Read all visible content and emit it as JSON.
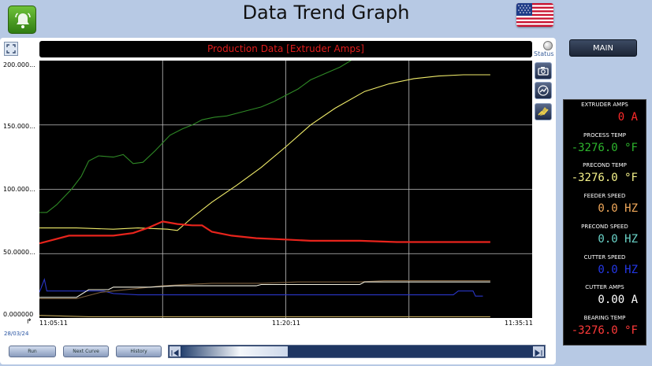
{
  "header": {
    "title": "Data Trend Graph",
    "alarm_icon": "bell-icon",
    "flag_icon": "us-flag-icon"
  },
  "chart_panel": {
    "title": "Production Data [Extruder Amps]",
    "status_label": "Status",
    "date": "28/03/24",
    "tools": [
      "camera-icon",
      "trend-icon",
      "edit-chart-icon"
    ]
  },
  "chart_data": {
    "type": "line",
    "title": "Production Data [Extruder Amps]",
    "xlabel": "",
    "ylabel": "",
    "x_ticks": [
      "11:05:11",
      "11:20:11",
      "11:35:11"
    ],
    "y_ticks": [
      "200.000...",
      "150.000...",
      "100.000...",
      "50.0000...",
      "0.000000"
    ],
    "ylim": [
      0,
      200
    ],
    "grid": true,
    "series": [
      {
        "color": "#2f8a26",
        "points": [
          [
            0,
            82
          ],
          [
            0.03,
            82
          ],
          [
            0.07,
            88
          ],
          [
            0.13,
            100
          ],
          [
            0.17,
            110
          ],
          [
            0.2,
            122
          ],
          [
            0.24,
            126
          ],
          [
            0.3,
            125
          ],
          [
            0.34,
            127
          ],
          [
            0.38,
            120
          ],
          [
            0.42,
            121
          ],
          [
            0.47,
            130
          ],
          [
            0.53,
            142
          ],
          [
            0.58,
            147
          ],
          [
            0.62,
            150
          ],
          [
            0.66,
            154
          ],
          [
            0.71,
            156
          ],
          [
            0.76,
            157
          ],
          [
            0.82,
            160
          ],
          [
            0.86,
            162
          ],
          [
            0.9,
            164
          ],
          [
            0.95,
            168
          ],
          [
            1.0,
            173
          ],
          [
            1.05,
            178
          ],
          [
            1.1,
            185
          ],
          [
            1.16,
            190
          ],
          [
            1.22,
            195
          ],
          [
            1.29,
            203
          ]
        ]
      },
      {
        "color": "#f0ec6a",
        "points": [
          [
            0,
            70
          ],
          [
            0.15,
            70
          ],
          [
            0.3,
            69
          ],
          [
            0.4,
            70
          ],
          [
            0.52,
            69
          ],
          [
            0.56,
            68
          ],
          [
            0.62,
            78
          ],
          [
            0.7,
            90
          ],
          [
            0.8,
            103
          ],
          [
            0.9,
            117
          ],
          [
            1.0,
            133
          ],
          [
            1.1,
            150
          ],
          [
            1.2,
            163
          ],
          [
            1.32,
            176
          ],
          [
            1.42,
            182
          ],
          [
            1.52,
            186
          ],
          [
            1.62,
            188
          ],
          [
            1.72,
            189
          ],
          [
            1.83,
            189
          ]
        ]
      },
      {
        "color": "#e8241c",
        "points": [
          [
            0,
            58
          ],
          [
            0.06,
            61
          ],
          [
            0.12,
            64
          ],
          [
            0.2,
            64
          ],
          [
            0.3,
            64
          ],
          [
            0.38,
            66
          ],
          [
            0.44,
            70
          ],
          [
            0.5,
            75
          ],
          [
            0.56,
            73
          ],
          [
            0.62,
            72
          ],
          [
            0.66,
            72
          ],
          [
            0.7,
            67
          ],
          [
            0.78,
            64
          ],
          [
            0.88,
            62
          ],
          [
            1.0,
            61
          ],
          [
            1.1,
            60
          ],
          [
            1.2,
            60
          ],
          [
            1.3,
            60
          ],
          [
            1.45,
            59
          ],
          [
            1.6,
            59
          ],
          [
            1.83,
            59
          ]
        ]
      },
      {
        "color": "#2a36c8",
        "points": [
          [
            0,
            20
          ],
          [
            0.02,
            30
          ],
          [
            0.03,
            21
          ],
          [
            0.2,
            21
          ],
          [
            0.26,
            21
          ],
          [
            0.3,
            19
          ],
          [
            0.4,
            18
          ],
          [
            0.6,
            18
          ],
          [
            0.9,
            18
          ],
          [
            1.3,
            18
          ],
          [
            1.6,
            18
          ],
          [
            1.68,
            18
          ],
          [
            1.7,
            21
          ],
          [
            1.76,
            21
          ],
          [
            1.77,
            17
          ],
          [
            1.8,
            17
          ]
        ]
      },
      {
        "color": "#7a5e3c",
        "points": [
          [
            0,
            15
          ],
          [
            0.15,
            15
          ],
          [
            0.25,
            20
          ],
          [
            0.4,
            23
          ],
          [
            0.5,
            25
          ],
          [
            0.7,
            27
          ],
          [
            0.9,
            27
          ],
          [
            1.05,
            28
          ],
          [
            1.3,
            28
          ],
          [
            1.4,
            29
          ],
          [
            1.83,
            29
          ]
        ]
      },
      {
        "color": "#f2f0e0",
        "points": [
          [
            0,
            16
          ],
          [
            0.15,
            16
          ],
          [
            0.2,
            22
          ],
          [
            0.28,
            22
          ],
          [
            0.3,
            24
          ],
          [
            0.45,
            24
          ],
          [
            0.55,
            25
          ],
          [
            0.88,
            25
          ],
          [
            0.9,
            26
          ],
          [
            1.3,
            26
          ],
          [
            1.32,
            28
          ],
          [
            1.83,
            28
          ]
        ]
      },
      {
        "color": "#c2a95e",
        "points": [
          [
            0,
            2
          ],
          [
            0.2,
            1
          ],
          [
            0.4,
            1
          ],
          [
            0.6,
            1
          ],
          [
            0.8,
            1
          ],
          [
            1.0,
            1
          ],
          [
            1.2,
            1
          ],
          [
            1.83,
            1
          ]
        ]
      }
    ]
  },
  "buttons": {
    "run": "Run",
    "next_curve": "Next Curve",
    "history": "History",
    "main": "MAIN"
  },
  "scrollbar": {
    "start_icon": "skip-start-icon",
    "end_icon": "skip-end-icon"
  },
  "readouts": [
    {
      "label": "EXTRUDER AMPS",
      "value": "0 A",
      "color": "#ff2a2a"
    },
    {
      "label": "PROCESS TEMP",
      "value": "-3276.0 °F",
      "color": "#2db52d"
    },
    {
      "label": "PRECOND TEMP",
      "value": "-3276.0 °F",
      "color": "#f5f28a"
    },
    {
      "label": "FEEDER SPEED",
      "value": "0.0 HZ",
      "color": "#f0a85a"
    },
    {
      "label": "PRECOND SPEED",
      "value": "0.0 HZ",
      "color": "#6ad3c8"
    },
    {
      "label": "CUTTER SPEED",
      "value": "0.0 HZ",
      "color": "#2438e8"
    },
    {
      "label": "CUTTER AMPS",
      "value": "0.00 A",
      "color": "#ffffff"
    },
    {
      "label": "BEARING TEMP",
      "value": "-3276.0 °F",
      "color": "#ff3a3a"
    }
  ]
}
